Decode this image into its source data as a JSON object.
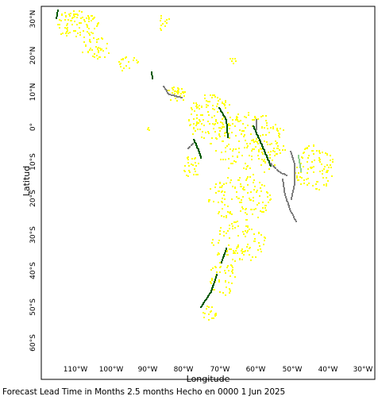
{
  "map": {
    "x_axis_label": "Longitude",
    "y_axis_label": "Latitud",
    "lon_ticks": [
      "110°W",
      "100°W",
      "90°W",
      "80°W",
      "70°W",
      "60°W",
      "50°W",
      "40°W",
      "30°W"
    ],
    "lat_ticks": [
      "30°N",
      "20°N",
      "10°N",
      "0°",
      "10°S",
      "20°S",
      "30°S",
      "40°S",
      "50°S",
      "60°S"
    ],
    "lon_range": [
      -120,
      -28
    ],
    "lat_range": [
      -65,
      35
    ],
    "colors": {
      "yellow": "#ffff00",
      "dark_green": "#005a00",
      "gray": "#7f7f7f",
      "light_green": "#90d090",
      "frame": "#000000"
    }
  },
  "caption": "Forecast Lead Time in Months 2.5 months Hecho en 0000 1 Jun 2025"
}
